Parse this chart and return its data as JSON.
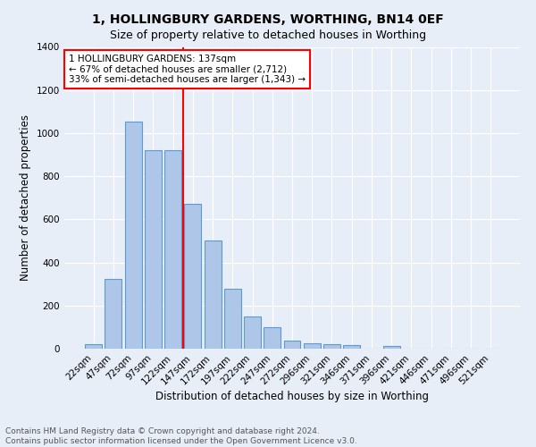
{
  "title": "1, HOLLINGBURY GARDENS, WORTHING, BN14 0EF",
  "subtitle": "Size of property relative to detached houses in Worthing",
  "xlabel": "Distribution of detached houses by size in Worthing",
  "ylabel": "Number of detached properties",
  "categories": [
    "22sqm",
    "47sqm",
    "72sqm",
    "97sqm",
    "122sqm",
    "147sqm",
    "172sqm",
    "197sqm",
    "222sqm",
    "247sqm",
    "272sqm",
    "296sqm",
    "321sqm",
    "346sqm",
    "371sqm",
    "396sqm",
    "421sqm",
    "446sqm",
    "471sqm",
    "496sqm",
    "521sqm"
  ],
  "values": [
    20,
    325,
    1055,
    920,
    920,
    670,
    500,
    278,
    150,
    100,
    38,
    25,
    22,
    15,
    0,
    12,
    0,
    0,
    0,
    0,
    0
  ],
  "bar_color": "#aec6e8",
  "bar_edgecolor": "#5b9bd5",
  "vline_x": 4.5,
  "vline_color": "red",
  "annotation_text": "1 HOLLINGBURY GARDENS: 137sqm\n← 67% of detached houses are smaller (2,712)\n33% of semi-detached houses are larger (1,343) →",
  "annotation_box_color": "white",
  "annotation_box_edgecolor": "red",
  "ylim": [
    0,
    1400
  ],
  "yticks": [
    0,
    200,
    400,
    600,
    800,
    1000,
    1200,
    1400
  ],
  "background_color": "#e8eef7",
  "footnote": "Contains HM Land Registry data © Crown copyright and database right 2024.\nContains public sector information licensed under the Open Government Licence v3.0.",
  "title_fontsize": 10,
  "subtitle_fontsize": 9,
  "xlabel_fontsize": 8.5,
  "ylabel_fontsize": 8.5,
  "tick_fontsize": 7.5,
  "annotation_fontsize": 7.5,
  "footnote_fontsize": 6.5
}
